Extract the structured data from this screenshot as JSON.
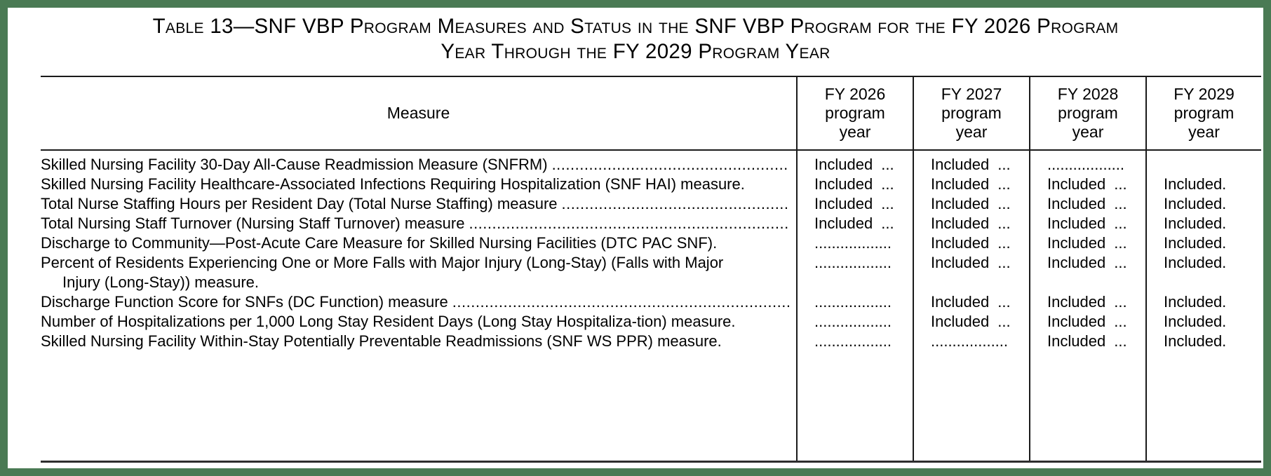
{
  "colors": {
    "frame_green": "#4a7a54",
    "rule_black": "#1a1a1a",
    "bottom_rule": "#2e2e2e",
    "text": "#000000",
    "background": "#ffffff"
  },
  "title": {
    "line1": "Table 13—SNF VBP Program Measures and Status in the SNF VBP Program for the FY 2026 Program",
    "line2": "Year Through the FY 2029 Program Year"
  },
  "table": {
    "leader_fill": "................................................................................................................................................................................................................................",
    "columns": {
      "measure": "Measure",
      "years": [
        "FY 2026 program year",
        "FY 2027 program year",
        "FY 2028 program year",
        "FY 2029 program year"
      ]
    },
    "rows": [
      {
        "measure": "Skilled Nursing Facility 30-Day All-Cause Readmission Measure (SNFRM)",
        "values": [
          "Included ...",
          "Included ...",
          "..................",
          ""
        ]
      },
      {
        "measure": "Skilled Nursing Facility Healthcare-Associated Infections Requiring Hospitalization (SNF HAI) measure.",
        "values": [
          "Included ...",
          "Included ...",
          "Included ...",
          "Included."
        ]
      },
      {
        "measure": "Total Nurse Staffing Hours per Resident Day (Total Nurse Staffing) measure",
        "values": [
          "Included ...",
          "Included ...",
          "Included ...",
          "Included."
        ]
      },
      {
        "measure": "Total Nursing Staff Turnover (Nursing Staff Turnover) measure",
        "values": [
          "Included ...",
          "Included ...",
          "Included ...",
          "Included."
        ]
      },
      {
        "measure": "Discharge to Community—Post-Acute Care Measure for Skilled Nursing Facilities (DTC PAC SNF).",
        "values": [
          "..................",
          "Included ...",
          "Included ...",
          "Included."
        ]
      },
      {
        "measure": "Percent of Residents Experiencing One or More Falls with Major Injury (Long-Stay) (Falls with Major Injury (Long-Stay)) measure.",
        "values": [
          "..................",
          "Included ...",
          "Included ...",
          "Included."
        ]
      },
      {
        "measure": "Discharge Function Score for SNFs (DC Function) measure",
        "values": [
          "..................",
          "Included ...",
          "Included ...",
          "Included."
        ]
      },
      {
        "measure": "Number of Hospitalizations per 1,000 Long Stay Resident Days (Long Stay Hospitaliza-tion) measure.",
        "values": [
          "..................",
          "Included ...",
          "Included ...",
          "Included."
        ]
      },
      {
        "measure": "Skilled Nursing Facility Within-Stay Potentially Preventable Readmissions (SNF WS PPR) measure.",
        "values": [
          "..................",
          "..................",
          "Included ...",
          "Included."
        ]
      }
    ]
  }
}
